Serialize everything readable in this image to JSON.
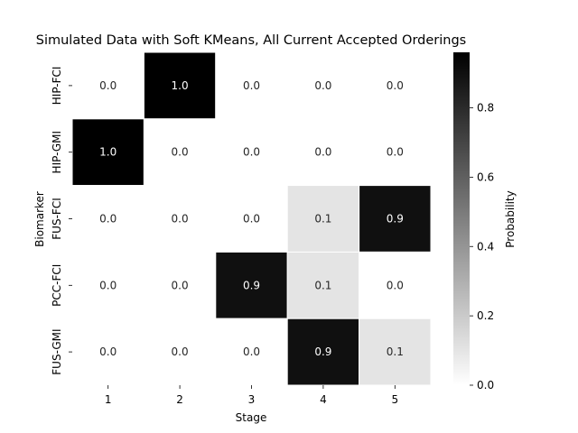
{
  "chart_data": {
    "type": "heatmap",
    "title": "Simulated Data with Soft KMeans, All Current Accepted Orderings",
    "xlabel": "Stage",
    "ylabel": "Biomarker",
    "x_categories": [
      "1",
      "2",
      "3",
      "4",
      "5"
    ],
    "y_categories": [
      "HIP-FCI",
      "HIP-GMI",
      "FUS-FCI",
      "PCC-FCI",
      "FUS-GMI"
    ],
    "values": [
      [
        0.0,
        1.0,
        0.0,
        0.0,
        0.0
      ],
      [
        1.0,
        0.0,
        0.0,
        0.0,
        0.0
      ],
      [
        0.0,
        0.0,
        0.0,
        0.1,
        0.9
      ],
      [
        0.0,
        0.0,
        0.9,
        0.1,
        0.0
      ],
      [
        0.0,
        0.0,
        0.0,
        0.9,
        0.1
      ]
    ],
    "cell_labels": [
      [
        "0.0",
        "1.0",
        "0.0",
        "0.0",
        "0.0"
      ],
      [
        "1.0",
        "0.0",
        "0.0",
        "0.0",
        "0.0"
      ],
      [
        "0.0",
        "0.0",
        "0.0",
        "0.1",
        "0.9"
      ],
      [
        "0.0",
        "0.0",
        "0.9",
        "0.1",
        "0.0"
      ],
      [
        "0.0",
        "0.0",
        "0.0",
        "0.9",
        "0.1"
      ]
    ],
    "colorbar": {
      "label": "Probability",
      "range": [
        0.0,
        0.96
      ],
      "ticks": [
        "0.0",
        "0.2",
        "0.4",
        "0.6",
        "0.8"
      ],
      "tick_values": [
        0.0,
        0.2,
        0.4,
        0.6,
        0.8
      ]
    },
    "colormap": {
      "low_color": "#ffffff",
      "high_color": "#000000"
    },
    "grid": false,
    "legend_position": "right"
  }
}
